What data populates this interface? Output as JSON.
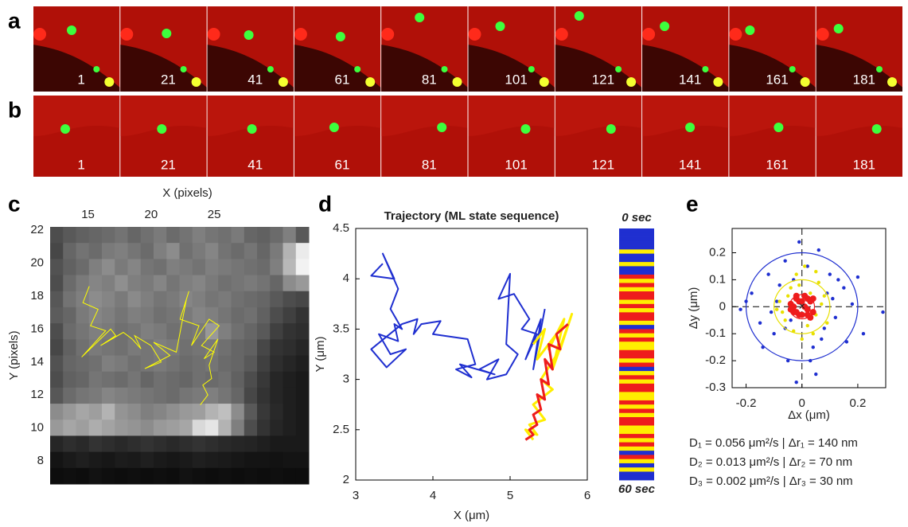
{
  "panels": [
    {
      "label": "a",
      "frames": [
        1,
        21,
        41,
        61,
        81,
        101,
        121,
        141,
        161,
        181
      ]
    },
    {
      "label": "b",
      "frames": [
        1,
        21,
        41,
        61,
        81,
        101,
        121,
        141,
        161,
        181
      ]
    }
  ],
  "chart_data": [
    {
      "type": "heatmap",
      "panel_label": "c",
      "xlabel": "X (pixels)",
      "ylabel": "Y (pixels)",
      "xlim": [
        12,
        32.5
      ],
      "ylim": [
        6.6,
        22.2
      ],
      "xticks": [
        15,
        20,
        25
      ],
      "yticks": [
        8,
        10,
        12,
        14,
        16,
        18,
        20,
        22
      ],
      "z": [
        [
          30,
          35,
          38,
          40,
          42,
          45,
          40,
          44,
          48,
          42,
          45,
          50,
          46,
          44,
          48,
          40,
          38,
          42,
          50,
          35
        ],
        [
          28,
          40,
          45,
          42,
          48,
          50,
          46,
          42,
          50,
          55,
          44,
          48,
          52,
          45,
          42,
          46,
          40,
          48,
          70,
          92
        ],
        [
          32,
          38,
          42,
          50,
          55,
          48,
          52,
          46,
          44,
          50,
          48,
          45,
          50,
          48,
          46,
          44,
          42,
          50,
          72,
          95
        ],
        [
          30,
          42,
          48,
          52,
          50,
          56,
          50,
          48,
          52,
          46,
          50,
          52,
          48,
          44,
          46,
          48,
          45,
          40,
          55,
          60
        ],
        [
          34,
          45,
          50,
          55,
          52,
          48,
          54,
          50,
          46,
          48,
          52,
          50,
          46,
          48,
          44,
          42,
          40,
          35,
          30,
          28
        ],
        [
          36,
          40,
          48,
          52,
          50,
          46,
          50,
          48,
          44,
          46,
          48,
          52,
          50,
          46,
          42,
          44,
          38,
          30,
          25,
          20
        ],
        [
          30,
          42,
          46,
          50,
          48,
          44,
          46,
          50,
          48,
          44,
          46,
          48,
          60,
          50,
          44,
          40,
          35,
          25,
          20,
          18
        ],
        [
          28,
          38,
          44,
          48,
          46,
          44,
          48,
          46,
          50,
          48,
          44,
          46,
          48,
          44,
          40,
          38,
          28,
          20,
          18,
          15
        ],
        [
          32,
          40,
          42,
          44,
          50,
          48,
          44,
          46,
          48,
          45,
          42,
          44,
          46,
          42,
          40,
          35,
          25,
          18,
          15,
          12
        ],
        [
          30,
          38,
          40,
          46,
          44,
          42,
          46,
          40,
          44,
          42,
          40,
          44,
          42,
          44,
          38,
          30,
          22,
          15,
          12,
          10
        ],
        [
          34,
          42,
          46,
          48,
          52,
          50,
          48,
          46,
          44,
          42,
          46,
          48,
          50,
          46,
          40,
          28,
          20,
          15,
          12,
          10
        ],
        [
          55,
          60,
          65,
          62,
          70,
          58,
          55,
          50,
          52,
          56,
          60,
          62,
          70,
          75,
          55,
          35,
          22,
          16,
          12,
          10
        ],
        [
          60,
          65,
          62,
          68,
          64,
          60,
          58,
          55,
          60,
          62,
          65,
          85,
          90,
          70,
          50,
          30,
          20,
          15,
          12,
          10
        ],
        [
          15,
          18,
          16,
          20,
          18,
          16,
          18,
          20,
          18,
          16,
          18,
          20,
          18,
          16,
          15,
          14,
          12,
          10,
          10,
          10
        ],
        [
          8,
          10,
          12,
          10,
          9,
          11,
          10,
          12,
          10,
          9,
          10,
          12,
          11,
          10,
          9,
          8,
          8,
          7,
          8,
          8
        ],
        [
          5,
          6,
          5,
          7,
          6,
          5,
          6,
          5,
          6,
          5,
          7,
          6,
          5,
          6,
          5,
          6,
          5,
          6,
          5,
          5
        ]
      ],
      "series": [
        {
          "color": "#ffff00",
          "x": [
            15.1,
            14.6,
            15.8,
            15.2,
            16.4,
            14.5,
            16.8,
            17.2,
            16.0,
            17.8,
            18.5,
            19.2,
            18.7,
            20.0,
            20.8,
            19.5,
            21.5,
            20.2,
            22.0,
            22.8,
            23.0,
            22.3,
            23.8,
            23.2,
            24.6,
            25.4,
            24.0,
            25.0,
            24.2,
            25.3,
            24.6,
            24.8,
            24.1,
            24.5,
            23.9
          ],
          "y": [
            18.6,
            17.6,
            17.2,
            16.2,
            15.9,
            14.3,
            16.0,
            15.6,
            15.0,
            15.8,
            15.4,
            14.8,
            15.6,
            15.0,
            14.0,
            13.6,
            14.4,
            15.2,
            14.6,
            17.8,
            18.3,
            16.6,
            16.2,
            15.0,
            16.6,
            16.2,
            15.0,
            14.6,
            14.2,
            15.4,
            13.8,
            13.0,
            12.6,
            12.0,
            11.4
          ]
        }
      ]
    },
    {
      "type": "line",
      "panel_label": "d",
      "title": "Trajectory (ML state sequence)",
      "xlabel": "X (μm)",
      "ylabel": "Y (μm)",
      "xlim": [
        3,
        6
      ],
      "ylim": [
        2,
        4.5
      ],
      "xticks": [
        3,
        4,
        5,
        6
      ],
      "yticks": [
        2,
        2.5,
        3,
        3.5,
        4,
        4.5
      ],
      "series": [
        {
          "color": "#1f2fd0",
          "x": [
            3.35,
            3.2,
            3.5,
            3.35,
            3.55,
            3.45,
            3.6,
            3.5,
            3.55,
            3.3,
            3.45,
            3.65,
            3.4,
            3.2,
            3.6,
            3.8,
            3.75,
            3.85,
            4.1,
            4.0,
            4.45,
            4.55,
            4.3,
            4.5,
            4.35,
            4.8,
            4.6,
            4.85,
            4.7,
            4.95,
            5.1,
            4.95,
            5.0,
            4.85,
            5.05,
            5.25,
            5.15,
            5.35,
            5.2,
            5.4,
            5.3,
            5.45
          ],
          "y": [
            4.15,
            4.03,
            4.0,
            4.25,
            3.9,
            3.7,
            3.5,
            3.55,
            3.38,
            3.45,
            3.25,
            3.3,
            3.12,
            3.3,
            3.55,
            3.6,
            3.45,
            3.55,
            3.58,
            3.45,
            3.4,
            3.15,
            3.1,
            3.02,
            3.15,
            3.05,
            3.1,
            3.2,
            3.0,
            3.05,
            3.25,
            3.35,
            4.05,
            3.8,
            3.85,
            3.6,
            3.5,
            3.45,
            3.2,
            3.6,
            3.1,
            3.7
          ]
        },
        {
          "color": "#ffee00",
          "x": [
            5.3,
            5.45,
            5.35,
            5.6,
            5.5,
            5.7,
            5.55,
            5.8,
            5.65,
            5.4,
            5.55,
            5.3,
            5.45,
            5.25,
            5.35,
            5.2,
            5.3
          ],
          "y": [
            3.35,
            3.5,
            3.2,
            3.45,
            3.3,
            3.6,
            3.1,
            3.65,
            3.3,
            3.0,
            2.9,
            2.75,
            2.6,
            2.55,
            2.45,
            2.5,
            2.4
          ]
        },
        {
          "color": "#ee1c1c",
          "x": [
            5.75,
            5.6,
            5.65,
            5.5,
            5.55,
            5.45,
            5.5,
            5.4,
            5.45,
            5.35,
            5.4,
            5.3,
            5.35,
            5.25,
            5.3,
            5.2
          ],
          "y": [
            3.55,
            3.45,
            3.3,
            3.35,
            3.1,
            3.2,
            2.95,
            3.0,
            2.8,
            2.85,
            2.7,
            2.65,
            2.55,
            2.5,
            2.45,
            2.4
          ]
        }
      ],
      "state_sequence": [
        1,
        1,
        1,
        1,
        1,
        2,
        1,
        1,
        2,
        1,
        1,
        3,
        2,
        3,
        2,
        3,
        3,
        2,
        3,
        2,
        3,
        3,
        2,
        1,
        3,
        2,
        3,
        2,
        2,
        3,
        3,
        2,
        3,
        1,
        2,
        3,
        2,
        3,
        3,
        2,
        2,
        3,
        2,
        3,
        2,
        3,
        3,
        2,
        2,
        3,
        2,
        3,
        2,
        1,
        3,
        2,
        1,
        2,
        1,
        1
      ],
      "colorbar_labels": [
        "0 sec",
        "60 sec"
      ]
    },
    {
      "type": "scatter",
      "panel_label": "e",
      "xlabel": "Δx (μm)",
      "ylabel": "Δy (μm)",
      "xlim": [
        -0.25,
        0.3
      ],
      "ylim": [
        -0.3,
        0.29
      ],
      "xticks": [
        -0.2,
        0,
        0.2
      ],
      "yticks": [
        -0.3,
        -0.2,
        -0.1,
        0,
        0.1,
        0.2
      ],
      "series": [
        {
          "name": "D₁ = 0.056 μm²/s | Δr₁ = 140 nm",
          "color": "#1f2fd0",
          "radius": 0.2,
          "x": [
            -0.22,
            -0.18,
            -0.15,
            -0.12,
            -0.1,
            -0.08,
            -0.06,
            -0.05,
            -0.03,
            -0.02,
            0.02,
            0.04,
            0.06,
            0.08,
            0.1,
            0.12,
            0.15,
            0.18,
            0.22,
            0.29,
            -0.14,
            -0.09,
            0.05,
            0.09,
            -0.04,
            0.13,
            -0.11,
            0.07,
            -0.2,
            0.16,
            -0.06,
            0.11,
            -0.01,
            0.03,
            0.2
          ],
          "y": [
            -0.01,
            0.05,
            -0.06,
            0.12,
            -0.1,
            0.08,
            0.17,
            -0.2,
            0.1,
            -0.28,
            0.15,
            -0.15,
            0.21,
            -0.08,
            0.12,
            -0.04,
            0.07,
            0.01,
            -0.1,
            -0.02,
            -0.15,
            0.02,
            -0.25,
            0.05,
            -0.05,
            0.1,
            -0.02,
            -0.12,
            0.02,
            -0.13,
            -0.08,
            0.03,
            0.24,
            -0.2,
            0.11
          ]
        },
        {
          "name": "D₂ = 0.013 μm²/s | Δr₂ = 70 nm",
          "color": "#e8e000",
          "radius": 0.1,
          "x": [
            -0.08,
            -0.06,
            -0.04,
            -0.03,
            -0.02,
            0.01,
            0.02,
            0.03,
            0.05,
            0.06,
            0.07,
            -0.05,
            0.04,
            -0.07,
            0.08,
            0.0,
            -0.01,
            0.05,
            -0.09,
            0.09
          ],
          "y": [
            0.02,
            -0.05,
            0.07,
            -0.09,
            0.12,
            0.15,
            -0.07,
            0.05,
            -0.03,
            0.09,
            0.01,
            0.04,
            -0.1,
            -0.02,
            0.04,
            -0.12,
            0.08,
            0.13,
            -0.01,
            -0.06
          ]
        },
        {
          "name": "D₃ = 0.002 μm²/s | Δr₃ = 30 nm",
          "color": "#ee1c1c",
          "radius": 0.045,
          "x": [
            -0.04,
            -0.03,
            -0.02,
            -0.01,
            0,
            0.01,
            0.02,
            0.03,
            0.04,
            -0.03,
            0.02,
            -0.02,
            0.03,
            0.0,
            -0.04,
            0.01,
            0.04,
            -0.01,
            0.02,
            -0.02
          ],
          "y": [
            0.01,
            -0.02,
            0.03,
            -0.03,
            0.02,
            0.04,
            -0.01,
            0.02,
            -0.02,
            0.0,
            0.03,
            0.04,
            -0.04,
            -0.03,
            -0.01,
            0.0,
            0.03,
            0.02,
            -0.03,
            -0.02
          ]
        }
      ]
    }
  ]
}
